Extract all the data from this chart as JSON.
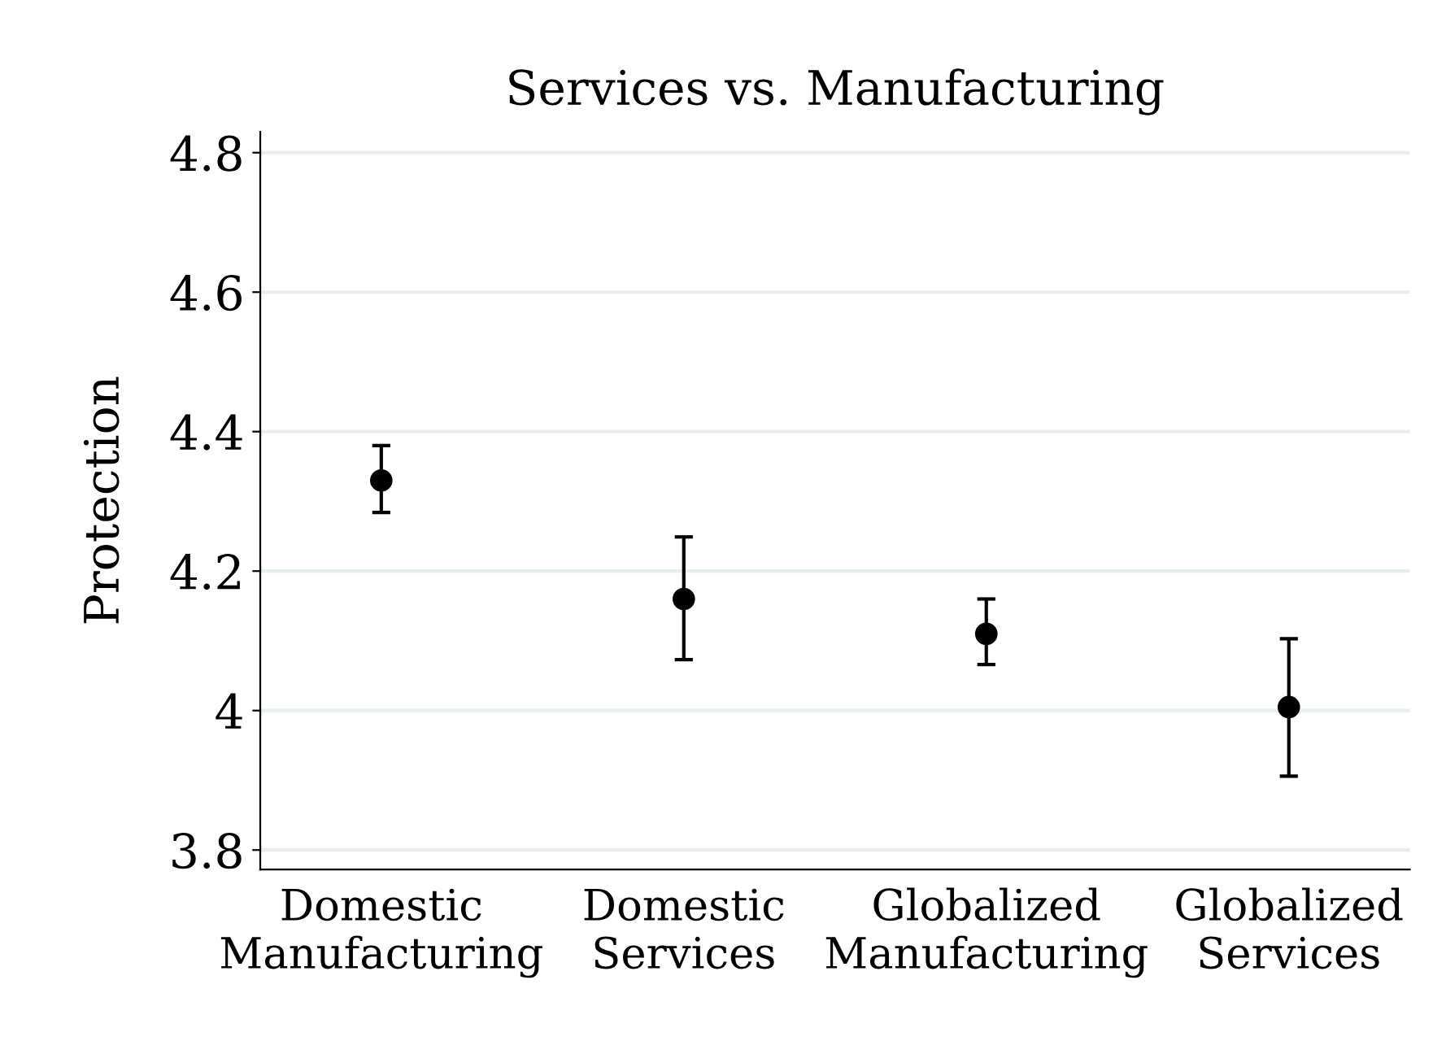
{
  "chart_data": {
    "type": "scatter",
    "title": "Services vs. Manufacturing",
    "ylabel": "Protection",
    "categories": [
      "Domestic\nManufacturing",
      "Domestic\nServices",
      "Globalized\nManufacturing",
      "Globalized\nServices"
    ],
    "values": [
      4.33,
      4.16,
      4.11,
      4.005
    ],
    "errors": [
      [
        4.284,
        4.38
      ],
      [
        4.073,
        4.249
      ],
      [
        4.066,
        4.16
      ],
      [
        3.906,
        4.103
      ]
    ],
    "color": "#000000",
    "marker": "circle",
    "ylim": [
      3.772,
      4.83
    ],
    "yticks": [
      3.8,
      4.0,
      4.2,
      4.4,
      4.6,
      4.8
    ],
    "grid": "y"
  }
}
